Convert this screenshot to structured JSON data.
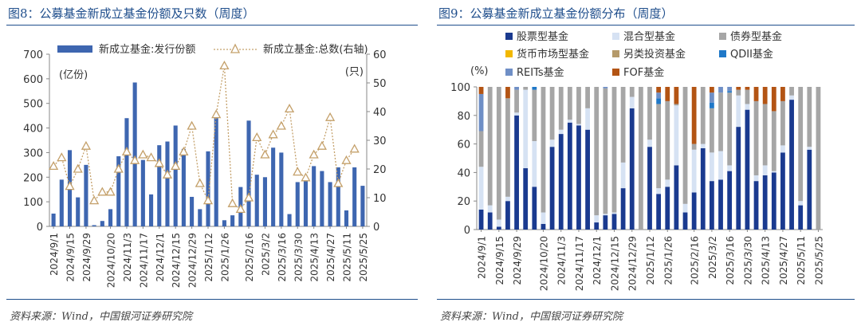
{
  "left": {
    "title": "图8：公募基金新成立基金份额及只数（周度）",
    "source": "资料来源：Wind，中国银河证券研究院"
  },
  "right": {
    "title": "图9：公募基金新成立基金份额分布（周度）",
    "source": "资料来源：Wind，中国银河证券研究院"
  },
  "colors": {
    "bar_blue": "#3e66b0",
    "line_tan": "#c4a06a",
    "stock": "#1a3a8f",
    "hybrid": "#d6e2f3",
    "bond": "#a6a6a6",
    "money": "#f2b800",
    "other": "#b59a6a",
    "qdii": "#1f78c8",
    "reits": "#6f8fc6",
    "fof": "#b35414"
  },
  "chart_data": [
    {
      "type": "bar",
      "combo_line": true,
      "categories": [
        "2024/9/1",
        "2024/9/8",
        "2024/9/15",
        "2024/9/22",
        "2024/9/29",
        "2024/10/6",
        "2024/10/13",
        "2024/10/20",
        "2024/10/27",
        "2024/11/3",
        "2024/11/10",
        "2024/11/17",
        "2024/11/24",
        "2024/12/1",
        "2024/12/8",
        "2024/12/15",
        "2024/12/22",
        "2024/12/29",
        "2025/1/5",
        "2025/1/12",
        "2025/1/19",
        "2025/1/26",
        "2025/2/2",
        "2025/2/9",
        "2025/2/16",
        "2025/2/23",
        "2025/3/2",
        "2025/3/9",
        "2025/3/16",
        "2025/3/23",
        "2025/3/30",
        "2025/4/6",
        "2025/4/13",
        "2025/4/20",
        "2025/4/27",
        "2025/5/4",
        "2025/5/11",
        "2025/5/18",
        "2025/5/25"
      ],
      "tick_labels": [
        "2024/9/1",
        "2024/9/15",
        "2024/9/29",
        "2024/10/20",
        "2024/11/3",
        "2024/11/17",
        "2024/12/1",
        "2024/12/15",
        "2024/12/29",
        "2025/1/12",
        "2025/1/26",
        "2025/2/16",
        "2025/3/2",
        "2025/3/16",
        "2025/3/30",
        "2025/4/13",
        "2025/4/27",
        "2025/5/11",
        "2025/5/25"
      ],
      "series": [
        {
          "name": "新成立基金:发行份额",
          "axis": "left",
          "kind": "bar",
          "values": [
            52,
            190,
            310,
            118,
            250,
            5,
            22,
            70,
            285,
            440,
            585,
            270,
            130,
            330,
            345,
            410,
            315,
            120,
            70,
            305,
            440,
            25,
            45,
            160,
            430,
            210,
            200,
            320,
            300,
            50,
            180,
            200,
            245,
            225,
            180,
            240,
            65,
            240,
            165
          ]
        },
        {
          "name": "新成立基金:总数(右轴)",
          "axis": "right",
          "kind": "line",
          "values": [
            21,
            24,
            14,
            20,
            28,
            9,
            12,
            12,
            20,
            26,
            23,
            25,
            24,
            22,
            18,
            21,
            26,
            35,
            15,
            9,
            39,
            56,
            8,
            6,
            10,
            31,
            25,
            32,
            35,
            41,
            19,
            17,
            25,
            28,
            38,
            15,
            23,
            27,
            null
          ]
        }
      ],
      "left_axis": {
        "range": [
          0,
          700
        ],
        "ticks": [
          0,
          100,
          200,
          300,
          400,
          500,
          600,
          700
        ],
        "unit": "(亿份)"
      },
      "right_axis": {
        "range": [
          0,
          60
        ],
        "ticks": [
          0,
          10,
          20,
          30,
          40,
          50,
          60
        ],
        "unit": "(只)"
      },
      "legend": "top"
    },
    {
      "type": "bar",
      "stacked": true,
      "categories": [
        "2024/9/1",
        "2024/9/8",
        "2024/9/15",
        "2024/9/22",
        "2024/9/29",
        "2024/10/6",
        "2024/10/13",
        "2024/10/20",
        "2024/10/27",
        "2024/11/3",
        "2024/11/10",
        "2024/11/17",
        "2024/11/24",
        "2024/12/1",
        "2024/12/8",
        "2024/12/15",
        "2024/12/22",
        "2024/12/29",
        "2025/1/5",
        "2025/1/12",
        "2025/1/19",
        "2025/1/26",
        "2025/2/2",
        "2025/2/9",
        "2025/2/16",
        "2025/2/23",
        "2025/3/2",
        "2025/3/9",
        "2025/3/16",
        "2025/3/23",
        "2025/3/30",
        "2025/4/6",
        "2025/4/13",
        "2025/4/20",
        "2025/4/27",
        "2025/5/4",
        "2025/5/11",
        "2025/5/18",
        "2025/5/25"
      ],
      "tick_labels": [
        "2024/9/1",
        "2024/9/15",
        "2024/9/29",
        "2024/10/20",
        "2024/11/3",
        "2024/11/17",
        "2024/12/1",
        "2024/12/15",
        "2024/12/29",
        "2025/1/12",
        "2025/1/26",
        "2025/2/16",
        "2025/3/2",
        "2025/3/16",
        "2025/3/30",
        "2025/4/13",
        "2025/4/27",
        "2025/5/11",
        "2025/5/25"
      ],
      "series": [
        {
          "name": "股票型基金",
          "values": [
            14,
            12,
            2,
            20,
            80,
            43,
            30,
            4,
            58,
            67,
            75,
            73,
            70,
            5,
            10,
            11,
            29,
            85,
            0,
            58,
            25,
            30,
            45,
            12,
            26,
            57,
            34,
            35,
            41,
            72,
            84,
            34,
            38,
            40,
            54,
            91,
            17,
            56,
            0
          ]
        },
        {
          "name": "混合型基金",
          "values": [
            30,
            5,
            5,
            3,
            2,
            55,
            32,
            8,
            5,
            3,
            2,
            1,
            15,
            5,
            1,
            1,
            18,
            8,
            0,
            5,
            4,
            5,
            42,
            6,
            30,
            3,
            20,
            20,
            4,
            22,
            4,
            4,
            7,
            1,
            5,
            3,
            3,
            2,
            0
          ]
        },
        {
          "name": "债券型基金",
          "values": [
            25,
            83,
            93,
            69,
            16,
            2,
            36,
            88,
            37,
            30,
            23,
            26,
            15,
            90,
            88,
            88,
            53,
            7,
            100,
            37,
            59,
            55,
            1,
            82,
            4,
            40,
            31,
            41,
            51,
            4,
            10,
            52,
            43,
            42,
            31,
            6,
            80,
            42,
            100
          ]
        },
        {
          "name": "货币市场型基金",
          "values": [
            0,
            0,
            0,
            0,
            0,
            0,
            0,
            0,
            0,
            0,
            0,
            0,
            0,
            0,
            0,
            0,
            0,
            0,
            0,
            0,
            0,
            0,
            0,
            0,
            0,
            0,
            0,
            0,
            0,
            0,
            0,
            0,
            0,
            0,
            0,
            0,
            0,
            0,
            0
          ]
        },
        {
          "name": "另类投资基金",
          "values": [
            0,
            0,
            0,
            0,
            0,
            0,
            0,
            0,
            0,
            0,
            0,
            0,
            0,
            0,
            0,
            0,
            0,
            0,
            0,
            0,
            0,
            0,
            0,
            0,
            0,
            0,
            0,
            0,
            0,
            0,
            0,
            0,
            0,
            0,
            0,
            0,
            0,
            0,
            0
          ]
        },
        {
          "name": "QDII基金",
          "values": [
            0,
            0,
            0,
            0,
            0,
            0,
            2,
            0,
            0,
            0,
            0,
            0,
            0,
            0,
            0,
            0,
            0,
            0,
            0,
            0,
            4,
            0,
            0,
            0,
            0,
            0,
            4,
            0,
            1,
            0,
            0,
            0,
            0,
            0,
            0,
            0,
            0,
            0,
            0
          ]
        },
        {
          "name": "REITs基金",
          "values": [
            26,
            0,
            0,
            0,
            2,
            0,
            0,
            0,
            0,
            0,
            0,
            0,
            0,
            0,
            1,
            0,
            0,
            0,
            0,
            0,
            4,
            0,
            0,
            0,
            0,
            0,
            7,
            4,
            3,
            0,
            0,
            0,
            0,
            0,
            0,
            0,
            0,
            0,
            0
          ]
        },
        {
          "name": "FOF基金",
          "values": [
            5,
            0,
            0,
            8,
            0,
            0,
            0,
            0,
            0,
            0,
            0,
            0,
            0,
            0,
            0,
            0,
            0,
            0,
            0,
            0,
            4,
            10,
            12,
            0,
            40,
            0,
            4,
            0,
            0,
            2,
            2,
            10,
            12,
            17,
            10,
            0,
            0,
            0,
            0
          ]
        }
      ],
      "y_axis": {
        "range": [
          0,
          100
        ],
        "ticks": [
          0,
          20,
          40,
          60,
          80,
          100
        ],
        "unit": "(%)"
      },
      "legend": "top"
    }
  ]
}
